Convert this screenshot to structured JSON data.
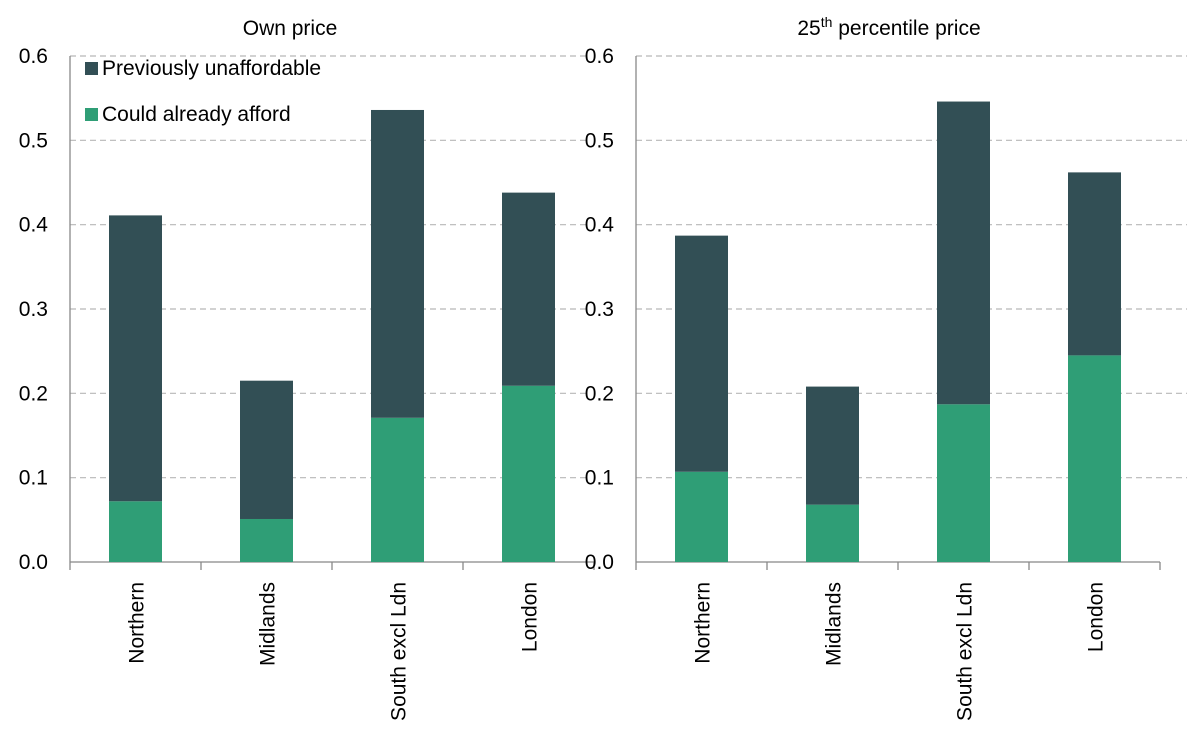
{
  "chart_data": [
    {
      "type": "bar",
      "stacked": true,
      "title": "Own price",
      "title_superscript": "",
      "title_suffix": "",
      "categories": [
        "Northern",
        "Midlands",
        "South excl Ldn",
        "London"
      ],
      "series": [
        {
          "name": "Could already afford",
          "values": [
            0.072,
            0.051,
            0.171,
            0.209
          ]
        },
        {
          "name": "Previously unaffordable",
          "values": [
            0.339,
            0.164,
            0.365,
            0.229
          ]
        }
      ],
      "ylim": [
        0,
        0.6
      ],
      "yticks": [
        "0.0",
        "0.1",
        "0.2",
        "0.3",
        "0.4",
        "0.5",
        "0.6"
      ],
      "grid": true,
      "legend": "top-left"
    },
    {
      "type": "bar",
      "stacked": true,
      "title": "25",
      "title_superscript": "th",
      "title_suffix": " percentile price",
      "categories": [
        "Northern",
        "Midlands",
        "South excl Ldn",
        "London"
      ],
      "series": [
        {
          "name": "Could already afford",
          "values": [
            0.107,
            0.068,
            0.187,
            0.245
          ]
        },
        {
          "name": "Previously unaffordable",
          "values": [
            0.28,
            0.14,
            0.359,
            0.217
          ]
        }
      ],
      "ylim": [
        0,
        0.6
      ],
      "yticks": [
        "0.0",
        "0.1",
        "0.2",
        "0.3",
        "0.4",
        "0.5",
        "0.6"
      ],
      "grid": true,
      "legend": "none"
    }
  ],
  "legend_entries": [
    {
      "name": "Previously unaffordable",
      "color": "#324f55"
    },
    {
      "name": "Could already afford",
      "color": "#2f9e76"
    }
  ],
  "colors": {
    "Could already afford": "#2f9e76",
    "Previously unaffordable": "#324f55"
  }
}
